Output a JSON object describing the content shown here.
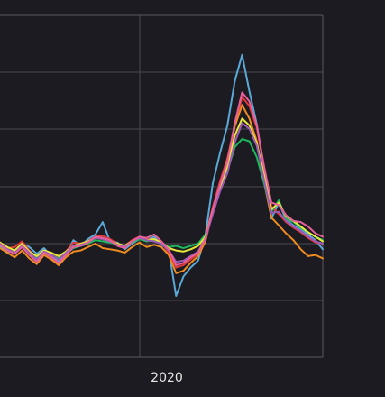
{
  "chart_data": {
    "type": "line",
    "title": "",
    "xlabel": "",
    "ylabel": "",
    "x_tick_labels": [
      "2020"
    ],
    "grid": true,
    "legend": "none",
    "series": [
      {
        "color": "#5aa9d6",
        "values": [
          -0.2,
          -0.8,
          -0.6,
          0.0,
          -0.3,
          -0.9,
          -0.4,
          -1.1,
          -1.6,
          -0.9,
          0.3,
          -0.2,
          0.4,
          0.8,
          1.9,
          0.2,
          0.1,
          -0.5,
          0.0,
          0.4,
          0.3,
          0.6,
          -0.1,
          -0.5,
          -4.6,
          -2.9,
          -2.1,
          -1.5,
          0.7,
          5.3,
          8.0,
          10.4,
          14.3,
          16.6,
          13.4,
          10.5,
          6.5,
          2.2,
          3.6,
          2.1,
          1.6,
          1.3,
          0.8,
          0.3,
          -0.5
        ]
      },
      {
        "color": "#e03a3a",
        "values": [
          0.1,
          -0.4,
          -0.3,
          0.2,
          -0.6,
          -1.2,
          -0.6,
          -0.9,
          -1.3,
          -0.7,
          0.1,
          0.0,
          0.2,
          0.6,
          0.7,
          0.4,
          0.0,
          -0.2,
          0.3,
          0.6,
          0.4,
          0.3,
          0.1,
          -0.8,
          -2.1,
          -1.9,
          -1.4,
          -0.9,
          0.5,
          3.2,
          5.5,
          7.5,
          10.4,
          12.9,
          12.1,
          10.2,
          6.7,
          3.3,
          2.6,
          1.9,
          1.4,
          1.0,
          0.5,
          0.1,
          0.0
        ]
      },
      {
        "color": "#f08c1e",
        "values": [
          -0.4,
          -0.8,
          -1.2,
          -0.6,
          -1.3,
          -1.8,
          -1.0,
          -1.4,
          -1.9,
          -1.2,
          -0.7,
          -0.6,
          -0.3,
          0.0,
          -0.4,
          -0.5,
          -0.6,
          -0.8,
          -0.3,
          0.1,
          -0.3,
          -0.1,
          -0.3,
          -1.0,
          -2.6,
          -2.4,
          -1.7,
          -1.1,
          0.2,
          2.9,
          5.1,
          7.3,
          10.3,
          12.2,
          11.0,
          9.0,
          5.4,
          2.3,
          1.6,
          0.9,
          0.3,
          -0.5,
          -1.1,
          -1.0,
          -1.3
        ]
      },
      {
        "color": "#1db85b",
        "values": [
          0.0,
          -0.5,
          -0.8,
          -0.2,
          -0.9,
          -1.3,
          -0.8,
          -1.0,
          -1.3,
          -0.9,
          -0.4,
          -0.2,
          0.0,
          0.3,
          0.2,
          0.1,
          -0.1,
          -0.3,
          0.1,
          0.4,
          0.2,
          0.3,
          0.1,
          -0.3,
          -0.2,
          -0.4,
          -0.2,
          0.0,
          0.8,
          2.8,
          4.8,
          6.4,
          8.5,
          9.2,
          9.0,
          7.6,
          5.3,
          2.8,
          3.8,
          2.2,
          1.9,
          1.4,
          1.0,
          0.6,
          0.3
        ]
      },
      {
        "color": "#e8e83a",
        "values": [
          0.1,
          -0.3,
          -0.6,
          0.0,
          -0.7,
          -1.1,
          -0.6,
          -0.8,
          -1.1,
          -0.7,
          -0.2,
          0.0,
          0.2,
          0.5,
          0.4,
          0.2,
          0.0,
          -0.2,
          0.2,
          0.5,
          0.3,
          0.4,
          0.1,
          -0.4,
          -0.6,
          -0.7,
          -0.5,
          -0.2,
          0.6,
          3.0,
          5.0,
          6.8,
          9.5,
          11.0,
          10.4,
          8.8,
          6.0,
          3.0,
          3.6,
          2.4,
          2.0,
          1.5,
          1.0,
          0.6,
          0.2
        ]
      },
      {
        "color": "#9b59b6",
        "values": [
          0.0,
          -0.5,
          -0.8,
          -0.2,
          -0.8,
          -1.4,
          -0.7,
          -1.0,
          -1.4,
          -0.8,
          -0.2,
          -0.1,
          0.1,
          0.5,
          0.4,
          0.2,
          -0.1,
          -0.3,
          0.2,
          0.5,
          0.3,
          0.2,
          0.0,
          -0.6,
          -1.6,
          -1.5,
          -1.1,
          -0.7,
          0.4,
          2.6,
          4.6,
          6.2,
          8.9,
          10.6,
          10.1,
          8.6,
          5.6,
          2.7,
          2.8,
          2.0,
          1.5,
          1.1,
          0.6,
          0.2,
          0.0
        ]
      },
      {
        "color": "#e8609a",
        "values": [
          -0.1,
          -0.6,
          -0.9,
          -0.3,
          -1.0,
          -1.6,
          -0.8,
          -1.2,
          -1.7,
          -1.0,
          -0.3,
          -0.2,
          0.1,
          0.6,
          0.5,
          0.3,
          -0.2,
          -0.4,
          0.2,
          0.6,
          0.5,
          0.8,
          0.2,
          -0.5,
          -1.9,
          -1.7,
          -1.2,
          -0.8,
          0.5,
          3.0,
          5.2,
          7.2,
          10.6,
          13.3,
          12.5,
          10.4,
          6.8,
          3.6,
          3.4,
          2.5,
          2.0,
          1.9,
          1.5,
          0.9,
          0.6
        ]
      }
    ]
  }
}
